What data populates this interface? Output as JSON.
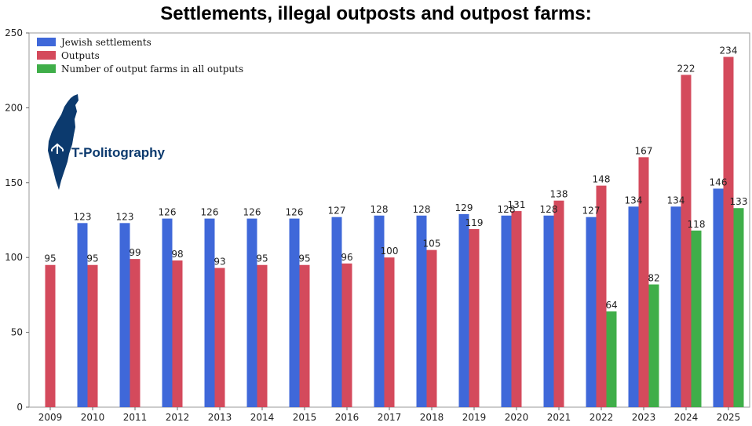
{
  "chart_data": {
    "type": "bar",
    "title": "Settlements, illegal outposts and outpost farms:",
    "xlabel": "",
    "ylabel": "",
    "ylim": [
      0,
      250
    ],
    "yticks": [
      0,
      50,
      100,
      150,
      200,
      250
    ],
    "grid": false,
    "legend_position": "top-left",
    "categories": [
      "2009",
      "2010",
      "2011",
      "2012",
      "2013",
      "2014",
      "2015",
      "2016",
      "2017",
      "2018",
      "2019",
      "2020",
      "2021",
      "2022",
      "2023",
      "2024",
      "2025"
    ],
    "series": [
      {
        "name": "Jewish settlements",
        "color": "#3f68d9",
        "values": [
          null,
          123,
          123,
          126,
          126,
          126,
          126,
          127,
          128,
          128,
          129,
          128,
          128,
          127,
          134,
          134,
          146
        ]
      },
      {
        "name": "Outputs",
        "color": "#d44a5c",
        "values": [
          95,
          95,
          99,
          98,
          93,
          95,
          95,
          96,
          100,
          105,
          119,
          131,
          138,
          148,
          167,
          222,
          234
        ]
      },
      {
        "name": "Number of output farms in all outputs",
        "color": "#3fae49",
        "values": [
          null,
          null,
          null,
          null,
          null,
          null,
          null,
          null,
          null,
          null,
          null,
          null,
          null,
          64,
          82,
          118,
          133
        ]
      }
    ]
  },
  "logo": {
    "text": "T-Politography"
  }
}
